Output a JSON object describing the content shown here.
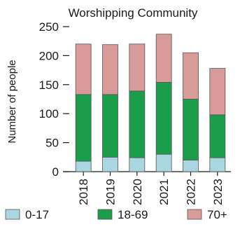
{
  "chart_data": {
    "type": "bar",
    "stacked": true,
    "title": "Worshipping Community",
    "xlabel": "",
    "ylabel": "Number of people",
    "ylim": [
      0,
      250
    ],
    "yticks": [
      0,
      50,
      100,
      150,
      200,
      250
    ],
    "ytick_labels": [
      "0",
      "50",
      "100",
      "150",
      "200",
      "250"
    ],
    "categories": [
      "2018",
      "2019",
      "2020",
      "2021",
      "2022",
      "2023"
    ],
    "grid": false,
    "legend_position": "bottom",
    "series": [
      {
        "name": "0-17",
        "color": "#a9d6e0",
        "values": [
          18,
          25,
          24,
          30,
          20,
          24
        ]
      },
      {
        "name": "18-69",
        "color": "#1a9e4a",
        "values": [
          115,
          108,
          115,
          124,
          105,
          74
        ]
      },
      {
        "name": "70+",
        "color": "#d99a9a",
        "values": [
          87,
          86,
          81,
          83,
          80,
          80
        ]
      }
    ]
  }
}
